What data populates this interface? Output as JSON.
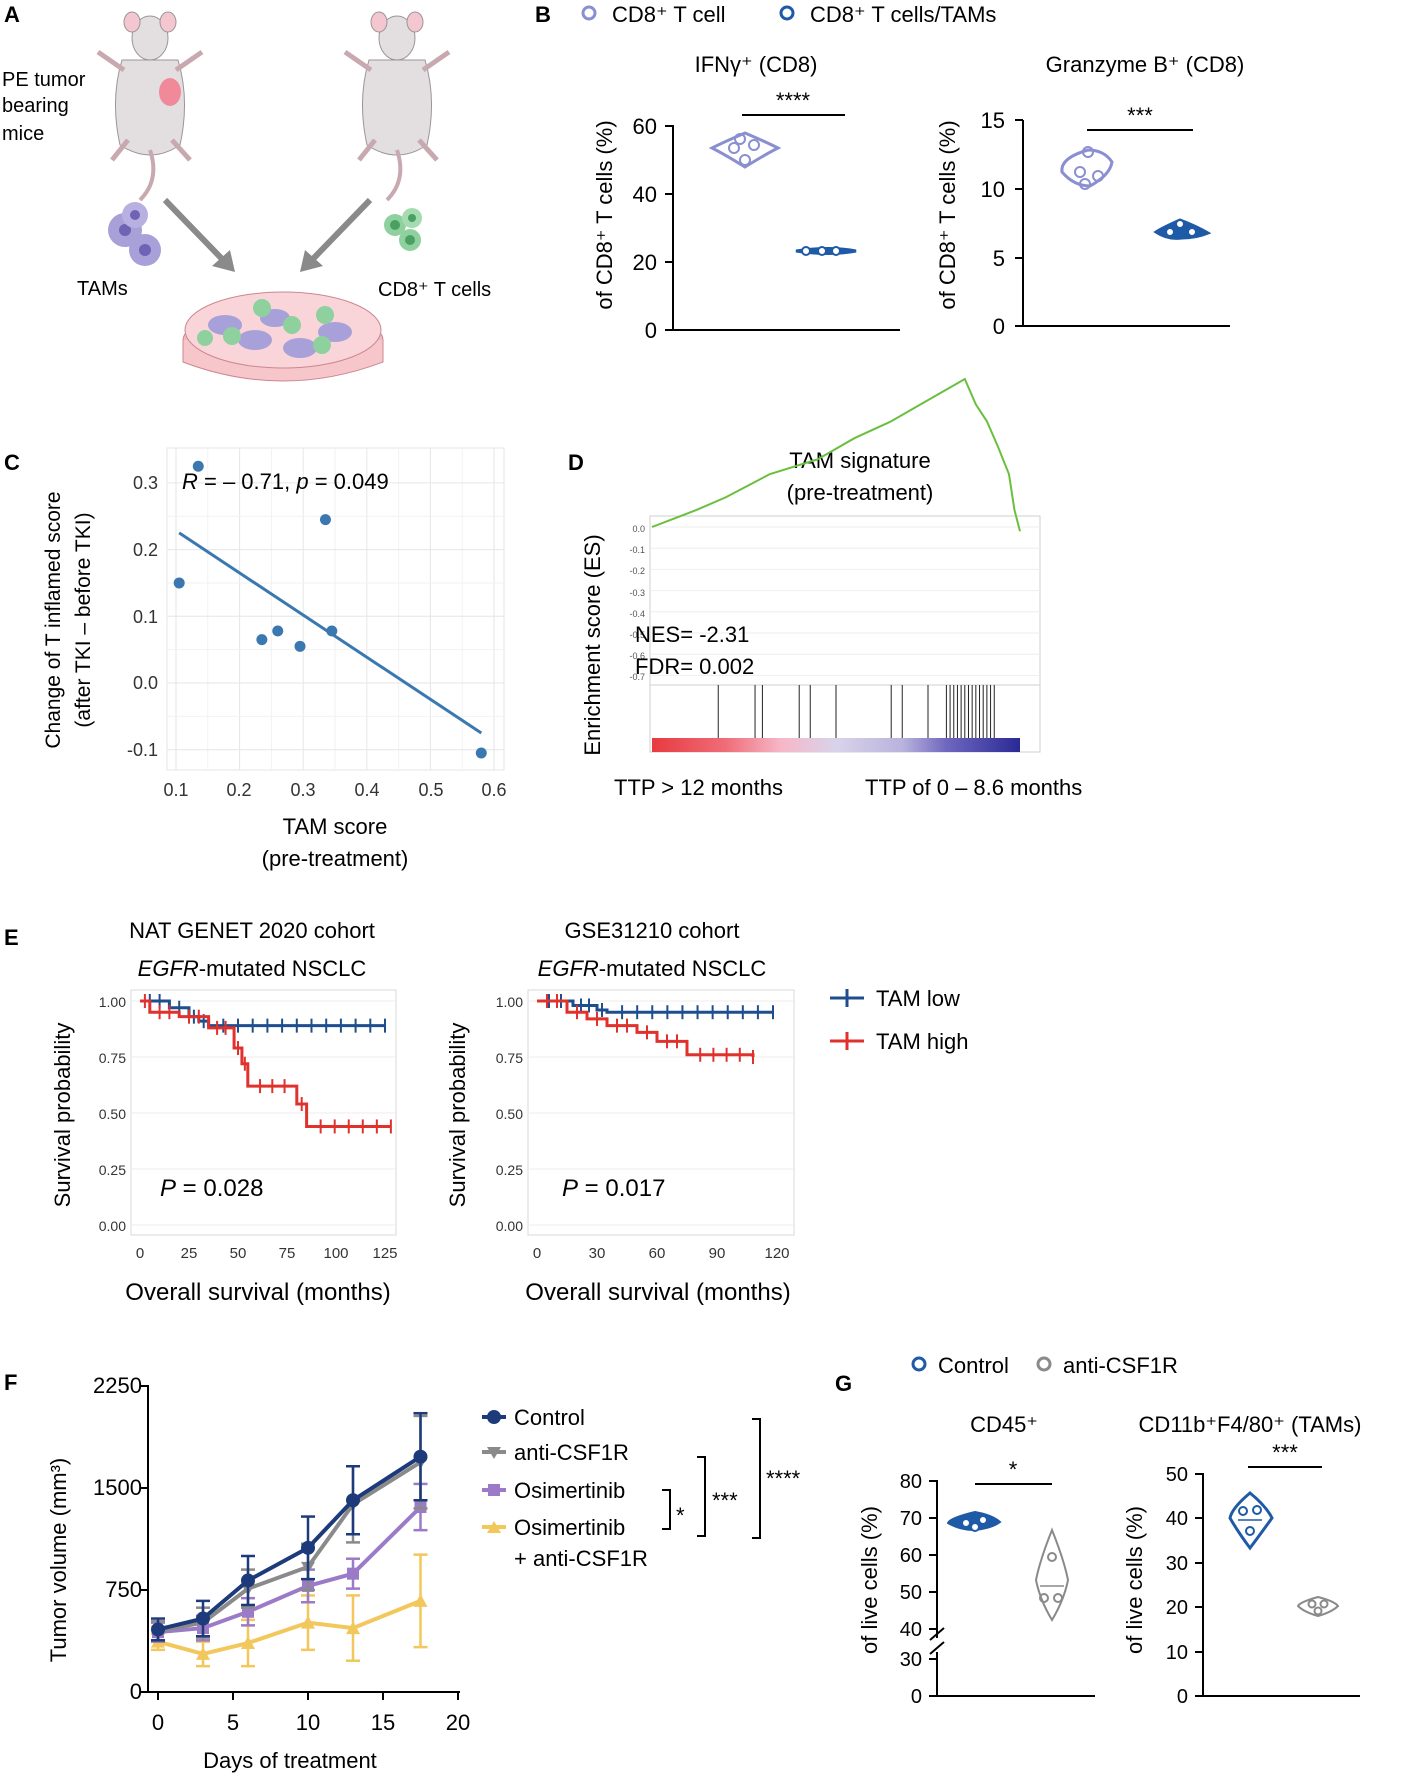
{
  "colors": {
    "light_purple": "#8a8fd0",
    "dark_blue": "#1f5aa6",
    "navy": "#1d3a7a",
    "steel_blue": "#3b78b0",
    "gsea_green": "#6abf3f",
    "km_blue": "#1f4e8f",
    "km_red": "#e0312d",
    "gray": "#8a8a8a",
    "purple": "#9b7bc7",
    "yellow": "#f2c75c",
    "mouse": "#e3dfe0",
    "tam_cell": "#a8a0d8",
    "t_cell": "#8fd19e",
    "dish": "#f4b7bd"
  },
  "panels": {
    "A": {
      "letter": "A",
      "mouse_label": [
        "PE tumor",
        "bearing",
        "mice"
      ],
      "tams_label": "TAMs",
      "cd8_label": "CD8⁺ T cells"
    },
    "B": {
      "letter": "B",
      "legend": [
        "CD8⁺ T cell",
        "CD8⁺ T cells/TAMs"
      ],
      "charts": [
        {
          "title": "IFNγ⁺ (CD8)",
          "ylabel": "of CD8⁺ T cells (%)",
          "yticks": [
            "0",
            "20",
            "40",
            "60"
          ],
          "ylim": [
            0,
            60
          ],
          "sig": "****"
        },
        {
          "title": "Granzyme B⁺ (CD8)",
          "ylabel": "of CD8⁺ T cells (%)",
          "yticks": [
            "0",
            "5",
            "10",
            "15"
          ],
          "ylim": [
            0,
            15
          ],
          "sig": "***"
        }
      ]
    },
    "C": {
      "letter": "C",
      "annotation_r": "R",
      "annotation_mid": " = – 0.71, ",
      "annotation_p": "p",
      "annotation_end": " = 0.049",
      "ylabel1": "Change of T inflamed score",
      "ylabel2": "(after TKI – before TKI)",
      "xlabel1": "TAM score",
      "xlabel2": "(pre-treatment)",
      "xticks": [
        "0.1",
        "0.2",
        "0.3",
        "0.4",
        "0.5",
        "0.6"
      ],
      "yticks": [
        "-0.1",
        "0.0",
        "0.1",
        "0.2",
        "0.3"
      ]
    },
    "D": {
      "letter": "D",
      "title1": "TAM signature",
      "title2": "(pre-treatment)",
      "ylabel": "Enrichment score (ES)",
      "nes": "NES= -2.31",
      "fdr": "FDR= 0.002",
      "left_label": "TTP > 12 months",
      "right_label": "TTP of 0 – 8.6 months",
      "yticks": [
        "0.0",
        "-0.1",
        "-0.2",
        "-0.3",
        "-0.4",
        "-0.5",
        "-0.6",
        "-0.7"
      ]
    },
    "E": {
      "letter": "E",
      "plots": [
        {
          "title1": "NAT GENET 2020 cohort",
          "title2_italic": "EGFR",
          "title2_rest": "-mutated NSCLC",
          "p_label": "P",
          "p_value": " = 0.028",
          "xticks": [
            "0",
            "25",
            "50",
            "75",
            "100",
            "125"
          ],
          "yticks": [
            "0.00",
            "0.25",
            "0.50",
            "0.75",
            "1.00"
          ],
          "ylabel": "Survival probability",
          "xlabel": "Overall survival (months)"
        },
        {
          "title1": "GSE31210 cohort",
          "title2_italic": "EGFR",
          "title2_rest": "-mutated NSCLC",
          "p_label": "P",
          "p_value": " = 0.017",
          "xticks": [
            "0",
            "30",
            "60",
            "90",
            "120"
          ],
          "yticks": [
            "0.00",
            "0.25",
            "0.50",
            "0.75",
            "1.00"
          ],
          "ylabel": "Survival probability",
          "xlabel": "Overall survival (months)"
        }
      ],
      "legend": [
        "TAM low",
        "TAM high"
      ]
    },
    "F": {
      "letter": "F",
      "ylabel": "Tumor volume (mm³)",
      "xlabel": "Days of treatment",
      "xticks": [
        "0",
        "5",
        "10",
        "15",
        "20"
      ],
      "yticks": [
        "0",
        "750",
        "1500",
        "2250"
      ],
      "legend": [
        "Control",
        "anti-CSF1R",
        "Osimertinib",
        "Osimertinib",
        "+ anti-CSF1R"
      ],
      "sig": [
        "*",
        "***",
        "****"
      ]
    },
    "G": {
      "letter": "G",
      "legend": [
        "Control",
        "anti-CSF1R"
      ],
      "charts": [
        {
          "title": "CD45⁺",
          "ylabel": "of live cells (%)",
          "yticks": [
            "0",
            "30",
            "40",
            "50",
            "60",
            "70",
            "80"
          ],
          "sig": "*"
        },
        {
          "title": "CD11b⁺F4/80⁺ (TAMs)",
          "ylabel": "of live cells (%)",
          "yticks": [
            "0",
            "10",
            "20",
            "30",
            "40",
            "50"
          ],
          "sig": "***"
        }
      ]
    }
  },
  "chart_data": [
    {
      "panel": "B",
      "type": "violin",
      "title": "IFNγ⁺ (CD8)",
      "categories": [
        "CD8⁺ T cell",
        "CD8⁺ T cells/TAMs"
      ],
      "values": [
        [
          50.5,
          53.5,
          55.5,
          52
        ],
        [
          23,
          22.8,
          23.2,
          23
        ]
      ],
      "ylim": [
        0,
        60
      ]
    },
    {
      "panel": "B",
      "type": "violin",
      "title": "Granzyme B⁺ (CD8)",
      "categories": [
        "CD8⁺ T cell",
        "CD8⁺ T cells/TAMs"
      ],
      "values": [
        [
          10.3,
          11.4,
          12.2,
          11.0
        ],
        [
          6.7,
          7.2,
          6.8,
          6.5
        ]
      ],
      "ylim": [
        0,
        15
      ]
    },
    {
      "panel": "C",
      "type": "scatter",
      "xlim": [
        0.1,
        0.6
      ],
      "ylim": [
        -0.12,
        0.33
      ],
      "points": [
        [
          0.105,
          0.15
        ],
        [
          0.135,
          0.325
        ],
        [
          0.235,
          0.065
        ],
        [
          0.26,
          0.078
        ],
        [
          0.295,
          0.055
        ],
        [
          0.335,
          0.245
        ],
        [
          0.345,
          0.078
        ],
        [
          0.58,
          -0.105
        ]
      ],
      "fit": [
        [
          0.105,
          0.225
        ],
        [
          0.58,
          -0.075
        ]
      ]
    },
    {
      "panel": "D",
      "type": "line",
      "ylim": [
        -0.72,
        0.02
      ],
      "es": [
        [
          0,
          0
        ],
        [
          0.06,
          -0.04
        ],
        [
          0.12,
          -0.08
        ],
        [
          0.2,
          -0.14
        ],
        [
          0.32,
          -0.25
        ],
        [
          0.45,
          -0.32
        ],
        [
          0.55,
          -0.42
        ],
        [
          0.65,
          -0.5
        ],
        [
          0.75,
          -0.6
        ],
        [
          0.83,
          -0.68
        ],
        [
          0.85,
          -0.7
        ],
        [
          0.88,
          -0.58
        ],
        [
          0.91,
          -0.5
        ],
        [
          0.94,
          -0.38
        ],
        [
          0.97,
          -0.25
        ],
        [
          0.985,
          -0.08
        ],
        [
          1.0,
          0.02
        ]
      ],
      "hits": [
        0.18,
        0.28,
        0.3,
        0.4,
        0.43,
        0.5,
        0.65,
        0.68,
        0.75,
        0.8,
        0.81,
        0.82,
        0.83,
        0.84,
        0.85,
        0.86,
        0.87,
        0.88,
        0.89,
        0.9,
        0.91,
        0.92,
        0.93
      ]
    },
    {
      "panel": "E",
      "type": "line",
      "title": "NAT GENET 2020 cohort",
      "series": [
        {
          "name": "TAM low",
          "steps": [
            [
              0,
              1.0
            ],
            [
              15,
              0.97
            ],
            [
              25,
              0.93
            ],
            [
              30,
              0.91
            ],
            [
              35,
              0.89
            ],
            [
              125,
              0.89
            ]
          ]
        },
        {
          "name": "TAM high",
          "steps": [
            [
              0,
              1.0
            ],
            [
              5,
              0.95
            ],
            [
              20,
              0.93
            ],
            [
              35,
              0.88
            ],
            [
              48,
              0.79
            ],
            [
              52,
              0.72
            ],
            [
              55,
              0.62
            ],
            [
              80,
              0.54
            ],
            [
              85,
              0.44
            ],
            [
              128,
              0.44
            ]
          ]
        }
      ],
      "xlim": [
        0,
        128
      ],
      "ylim": [
        0,
        1
      ]
    },
    {
      "panel": "E",
      "type": "line",
      "title": "GSE31210 cohort",
      "series": [
        {
          "name": "TAM low",
          "steps": [
            [
              0,
              1.0
            ],
            [
              18,
              0.98
            ],
            [
              30,
              0.96
            ],
            [
              35,
              0.95
            ],
            [
              118,
              0.95
            ]
          ]
        },
        {
          "name": "TAM high",
          "steps": [
            [
              0,
              1.0
            ],
            [
              15,
              0.95
            ],
            [
              25,
              0.92
            ],
            [
              35,
              0.89
            ],
            [
              50,
              0.86
            ],
            [
              60,
              0.82
            ],
            [
              75,
              0.76
            ],
            [
              108,
              0.75
            ]
          ]
        }
      ],
      "xlim": [
        0,
        120
      ],
      "ylim": [
        0,
        1
      ]
    },
    {
      "panel": "F",
      "type": "line",
      "x": [
        0,
        3,
        6,
        10,
        13,
        17.5
      ],
      "ylim": [
        0,
        2250
      ],
      "xlim": [
        0,
        20
      ],
      "series": [
        {
          "name": "Control",
          "values": [
            460,
            540,
            820,
            1060,
            1410,
            1730
          ],
          "err": [
            80,
            130,
            180,
            230,
            250,
            320
          ]
        },
        {
          "name": "anti-CSF1R",
          "values": [
            450,
            510,
            760,
            920,
            1380,
            1690
          ],
          "err": [
            70,
            110,
            140,
            170,
            280,
            340
          ]
        },
        {
          "name": "Osimertinib",
          "values": [
            440,
            470,
            590,
            780,
            870,
            1360
          ],
          "err": [
            70,
            90,
            100,
            120,
            110,
            170
          ]
        },
        {
          "name": "Osimertinib + anti-CSF1R",
          "values": [
            370,
            280,
            360,
            510,
            470,
            670
          ],
          "err": [
            60,
            90,
            170,
            200,
            240,
            340
          ]
        }
      ]
    },
    {
      "panel": "G",
      "type": "violin",
      "title": "CD45⁺",
      "categories": [
        "Control",
        "anti-CSF1R"
      ],
      "values": [
        [
          67.5,
          68.5,
          69,
          68
        ],
        [
          51.5,
          52,
          62,
          55
        ]
      ]
    },
    {
      "panel": "G",
      "type": "violin",
      "title": "CD11b⁺F4/80⁺ (TAMs)",
      "categories": [
        "Control",
        "anti-CSF1R"
      ],
      "values": [
        [
          40.5,
          42,
          38,
          41
        ],
        [
          20.5,
          21.2,
          19.8,
          21
        ]
      ],
      "ylim": [
        0,
        50
      ]
    }
  ]
}
